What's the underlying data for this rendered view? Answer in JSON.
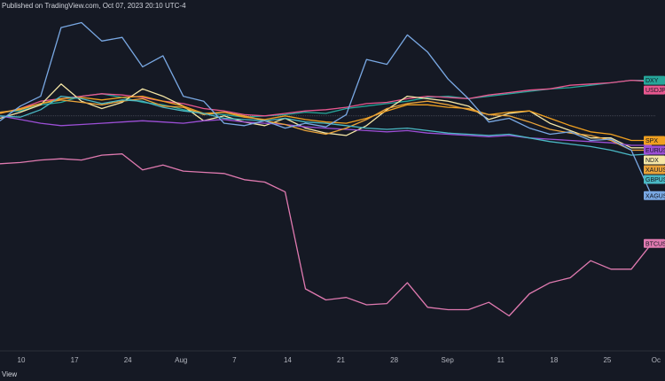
{
  "header": {
    "text": "Published on TradingView.com, Oct 07, 2023 20:10 UTC-4"
  },
  "footer": {
    "text": "View"
  },
  "chart_data": {
    "type": "line",
    "title": "",
    "xlabel": "",
    "ylabel": "",
    "x_ticks": [
      "10",
      "17",
      "24",
      "Aug",
      "7",
      "14",
      "21",
      "28",
      "Sep",
      "11",
      "18",
      "25",
      "Oc"
    ],
    "grid": false,
    "legend": "right-edge labels",
    "y_units": "percent change (normalized)",
    "ylim": [
      -18,
      8
    ],
    "series": [
      {
        "name": "DXY",
        "color": "#26a69a",
        "values": [
          0.3,
          0.4,
          0.9,
          1.1,
          1.6,
          1.8,
          1.5,
          1.1,
          0.9,
          0.5,
          0.2,
          0.1,
          -0.1,
          0.0,
          0.1,
          0.3,
          0.2,
          0.6,
          0.8,
          1.0,
          1.2,
          1.5,
          1.6,
          1.4,
          1.6,
          1.8,
          2.0,
          2.2,
          2.3,
          2.5,
          2.7,
          2.9,
          2.9
        ]
      },
      {
        "name": "USDJPY",
        "color": "#e8578f",
        "values": [
          0.2,
          0.6,
          1.2,
          1.4,
          1.6,
          1.8,
          1.7,
          1.5,
          1.2,
          1.0,
          0.6,
          0.4,
          0.1,
          0.0,
          0.2,
          0.4,
          0.5,
          0.7,
          1.0,
          1.1,
          1.4,
          1.6,
          1.5,
          1.4,
          1.7,
          1.9,
          2.1,
          2.2,
          2.5,
          2.6,
          2.7,
          2.9,
          2.8
        ]
      },
      {
        "name": "NDX",
        "color": "#f6e7a6",
        "values": [
          -0.2,
          0.3,
          0.9,
          2.6,
          1.2,
          0.6,
          1.1,
          2.2,
          1.6,
          0.8,
          -0.4,
          0.0,
          -0.5,
          -0.8,
          -0.2,
          -1.0,
          -1.4,
          -1.6,
          -0.8,
          0.5,
          1.6,
          1.4,
          1.2,
          0.8,
          -0.3,
          0.2,
          0.4,
          -0.6,
          -1.2,
          -1.8,
          -1.8,
          -2.6,
          -2.6
        ]
      },
      {
        "name": "SPX",
        "color": "#f0a020",
        "values": [
          0.2,
          0.6,
          1.0,
          1.4,
          1.5,
          1.3,
          1.5,
          1.6,
          1.2,
          0.8,
          0.2,
          0.3,
          -0.1,
          -0.3,
          0.0,
          -0.3,
          -0.5,
          -0.6,
          -0.2,
          0.4,
          0.9,
          0.9,
          0.7,
          0.6,
          0.1,
          0.3,
          0.4,
          -0.2,
          -0.8,
          -1.3,
          -1.5,
          -2.0,
          -2.0
        ]
      },
      {
        "name": "EURUSD",
        "color": "#9c4fd6",
        "values": [
          0.0,
          -0.3,
          -0.6,
          -0.8,
          -0.7,
          -0.6,
          -0.5,
          -0.4,
          -0.5,
          -0.6,
          -0.4,
          -0.3,
          -0.5,
          -0.6,
          -0.7,
          -0.9,
          -1.0,
          -1.1,
          -1.2,
          -1.3,
          -1.2,
          -1.4,
          -1.5,
          -1.6,
          -1.7,
          -1.6,
          -1.8,
          -1.9,
          -2.0,
          -2.1,
          -2.2,
          -2.4,
          -2.4
        ]
      },
      {
        "name": "XAUUSD",
        "color": "#e9a33a",
        "values": [
          0.3,
          0.5,
          1.0,
          1.3,
          1.1,
          0.9,
          1.2,
          1.4,
          0.8,
          0.7,
          0.1,
          0.3,
          0.0,
          -0.4,
          -0.7,
          -1.2,
          -1.5,
          -1.0,
          -0.3,
          0.6,
          1.0,
          1.2,
          0.9,
          0.5,
          0.1,
          0.0,
          -0.5,
          -1.1,
          -1.4,
          -1.6,
          -2.0,
          -2.8,
          -2.8
        ]
      },
      {
        "name": "GBPUSD",
        "color": "#4ab8c4",
        "values": [
          0.0,
          -0.1,
          0.5,
          1.6,
          1.4,
          1.0,
          1.3,
          1.2,
          0.7,
          0.4,
          0.2,
          -0.2,
          -0.3,
          -0.4,
          -0.2,
          -0.5,
          -0.6,
          -0.8,
          -1.0,
          -1.1,
          -1.0,
          -1.2,
          -1.4,
          -1.5,
          -1.6,
          -1.5,
          -1.8,
          -2.1,
          -2.3,
          -2.5,
          -2.8,
          -3.2,
          -3.1
        ]
      },
      {
        "name": "XAGUSD",
        "color": "#79a8e3",
        "values": [
          -0.4,
          0.8,
          1.6,
          7.2,
          7.6,
          6.1,
          6.4,
          4.0,
          4.9,
          1.6,
          1.2,
          -0.6,
          -0.8,
          -0.4,
          -1.0,
          -0.6,
          -0.9,
          0.1,
          4.6,
          4.2,
          6.6,
          5.2,
          3.0,
          1.4,
          -0.5,
          -0.2,
          -1.0,
          -1.5,
          -1.3,
          -2.0,
          -1.9,
          -2.8,
          -6.5
        ]
      },
      {
        "name": "BTCUSD",
        "color": "#e07ab0",
        "values": [
          -3.9,
          -3.8,
          -3.6,
          -3.5,
          -3.6,
          -3.2,
          -3.1,
          -4.4,
          -4.0,
          -4.5,
          -4.6,
          -4.7,
          -5.2,
          -5.4,
          -6.2,
          -14.1,
          -15.0,
          -14.8,
          -15.4,
          -15.3,
          -13.6,
          -15.6,
          -15.8,
          -15.8,
          -15.2,
          -16.3,
          -14.5,
          -13.6,
          -13.2,
          -11.8,
          -12.5,
          -12.5,
          -10.4
        ]
      }
    ]
  }
}
